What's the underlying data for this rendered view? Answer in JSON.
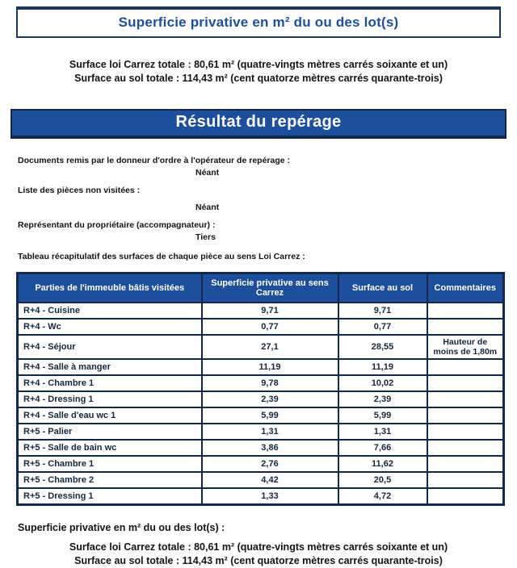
{
  "page": {
    "title": "Superficie privative en m² du ou des lot(s)",
    "totals_top": {
      "carrez": "Surface loi Carrez totale : 80,61 m² (quatre-vingts mètres carrés soixante et un)",
      "sol": "Surface au sol totale : 114,43 m² (cent quatorze mètres carrés quarante-trois)"
    },
    "banner": "Résultat du repérage",
    "info": [
      {
        "label": "Documents remis par le donneur d'ordre à l'opérateur de repérage :",
        "value": "Néant"
      },
      {
        "label": "Liste des pièces non visitées :",
        "value": "Néant"
      },
      {
        "label": "Représentant du propriétaire (accompagnateur) :",
        "value": "Tiers"
      }
    ],
    "table_intro": "Tableau récapitulatif des surfaces de chaque pièce au sens Loi Carrez :",
    "table": {
      "headers": [
        "Parties de l'immeuble bâtis visitées",
        "Superficie privative au sens Carrez",
        "Surface au sol",
        "Commentaires"
      ],
      "rows": [
        [
          "R+4 - Cuisine",
          "9,71",
          "9,71",
          ""
        ],
        [
          "R+4 - Wc",
          "0,77",
          "0,77",
          ""
        ],
        [
          "R+4 - Séjour",
          "27,1",
          "28,55",
          "Hauteur de moins de 1,80m"
        ],
        [
          "R+4 - Salle à manger",
          "11,19",
          "11,19",
          ""
        ],
        [
          "R+4 - Chambre 1",
          "9,78",
          "10,02",
          ""
        ],
        [
          "R+4 - Dressing 1",
          "2,39",
          "2,39",
          ""
        ],
        [
          "R+4 - Salle d'eau wc 1",
          "5,99",
          "5,99",
          ""
        ],
        [
          "R+5 - Palier",
          "1,31",
          "1,31",
          ""
        ],
        [
          "R+5 - Salle de bain wc",
          "3,86",
          "7,66",
          ""
        ],
        [
          "R+5 - Chambre 1",
          "2,76",
          "11,62",
          ""
        ],
        [
          "R+5 - Chambre 2",
          "4,42",
          "20,5",
          ""
        ],
        [
          "R+5 - Dressing 1",
          "1,33",
          "4,72",
          ""
        ]
      ]
    },
    "bottom": {
      "heading": "Superficie privative en m² du ou des lot(s) :",
      "carrez": "Surface loi Carrez totale : 80,61 m² (quatre-vingts mètres carrés soixante et un)",
      "sol": "Surface au sol totale : 114,43 m² (cent quatorze mètres carrés quarante-trois)"
    },
    "colors": {
      "accent_blue": "#1d4f9c",
      "border_navy": "#14294a",
      "title_blue": "#1d4f9c"
    }
  }
}
